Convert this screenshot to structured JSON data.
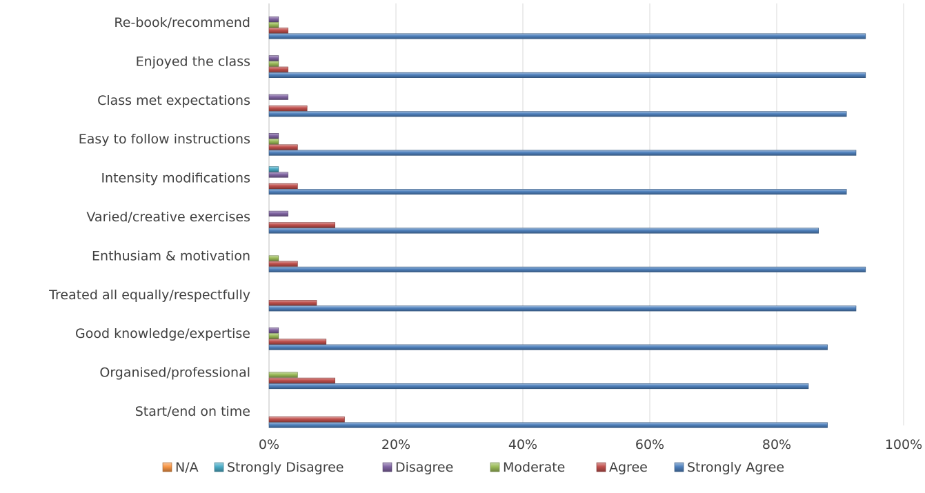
{
  "chart_data": {
    "type": "bar",
    "orientation": "horizontal",
    "categories": [
      "Re-book/recommend",
      "Enjoyed the class",
      "Class met expectations",
      "Easy to follow instructions",
      "Intensity modifications",
      "Varied/creative exercises",
      "Enthusiam & motivation",
      "Treated all equally/respectfully",
      "Good knowledge/expertise",
      "Organised/professional",
      "Start/end on time"
    ],
    "series": [
      {
        "name": "N/A",
        "color": "#F79646",
        "values": [
          0,
          0,
          0,
          0,
          0,
          0,
          0,
          0,
          0,
          0,
          0
        ]
      },
      {
        "name": "Strongly Disagree",
        "color": "#4BACC6",
        "values": [
          0,
          0,
          0,
          0,
          1.5,
          0,
          0,
          0,
          0,
          0,
          0
        ]
      },
      {
        "name": "Disagree",
        "color": "#8064A2",
        "values": [
          1.5,
          1.5,
          3,
          1.5,
          3,
          3,
          0,
          0,
          1.5,
          0,
          0
        ]
      },
      {
        "name": "Moderate",
        "color": "#9BBB59",
        "values": [
          1.5,
          1.5,
          0,
          1.5,
          0,
          0,
          1.5,
          0,
          1.5,
          4.5,
          0
        ]
      },
      {
        "name": "Agree",
        "color": "#C0504D",
        "values": [
          3,
          3,
          6,
          4.5,
          4.5,
          10.4,
          4.5,
          7.5,
          9,
          10.4,
          11.9
        ]
      },
      {
        "name": "Strongly Agree",
        "color": "#4F81BD",
        "values": [
          94,
          94,
          91,
          92.5,
          91,
          86.6,
          94,
          92.5,
          88,
          85,
          88
        ]
      }
    ],
    "xlim": [
      0,
      100
    ],
    "x_ticks": [
      "0%",
      "20%",
      "40%",
      "60%",
      "80%",
      "100%"
    ],
    "grid": "vertical",
    "legend": "bottom"
  }
}
